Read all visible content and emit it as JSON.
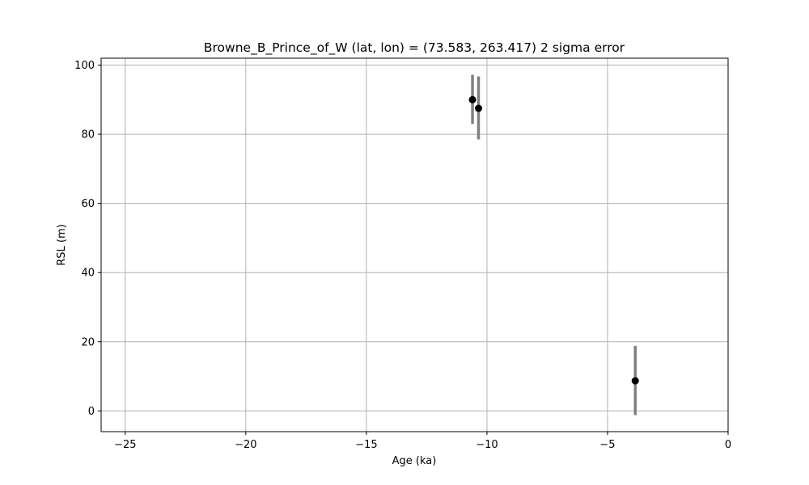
{
  "chart_data": {
    "type": "scatter",
    "title": "Browne_B_Prince_of_W (lat, lon) = (73.583, 263.417)  2 sigma error",
    "xlabel": "Age (ka)",
    "ylabel": "RSL (m)",
    "xlim": [
      -26,
      0
    ],
    "ylim": [
      -6,
      102
    ],
    "xticks": [
      -25,
      -20,
      -15,
      -10,
      -5,
      0
    ],
    "yticks": [
      0,
      20,
      40,
      60,
      80,
      100
    ],
    "grid": true,
    "colors": {
      "marker": "#000000",
      "errorbar": "#808080",
      "grid": "#b0b0b0"
    },
    "points": [
      {
        "x": -10.6,
        "y": 90.0,
        "y_low": 83.0,
        "y_high": 97.2
      },
      {
        "x": -10.35,
        "y": 87.5,
        "y_low": 78.5,
        "y_high": 96.7
      },
      {
        "x": -3.85,
        "y": 8.7,
        "y_low": -1.2,
        "y_high": 18.8
      }
    ]
  }
}
